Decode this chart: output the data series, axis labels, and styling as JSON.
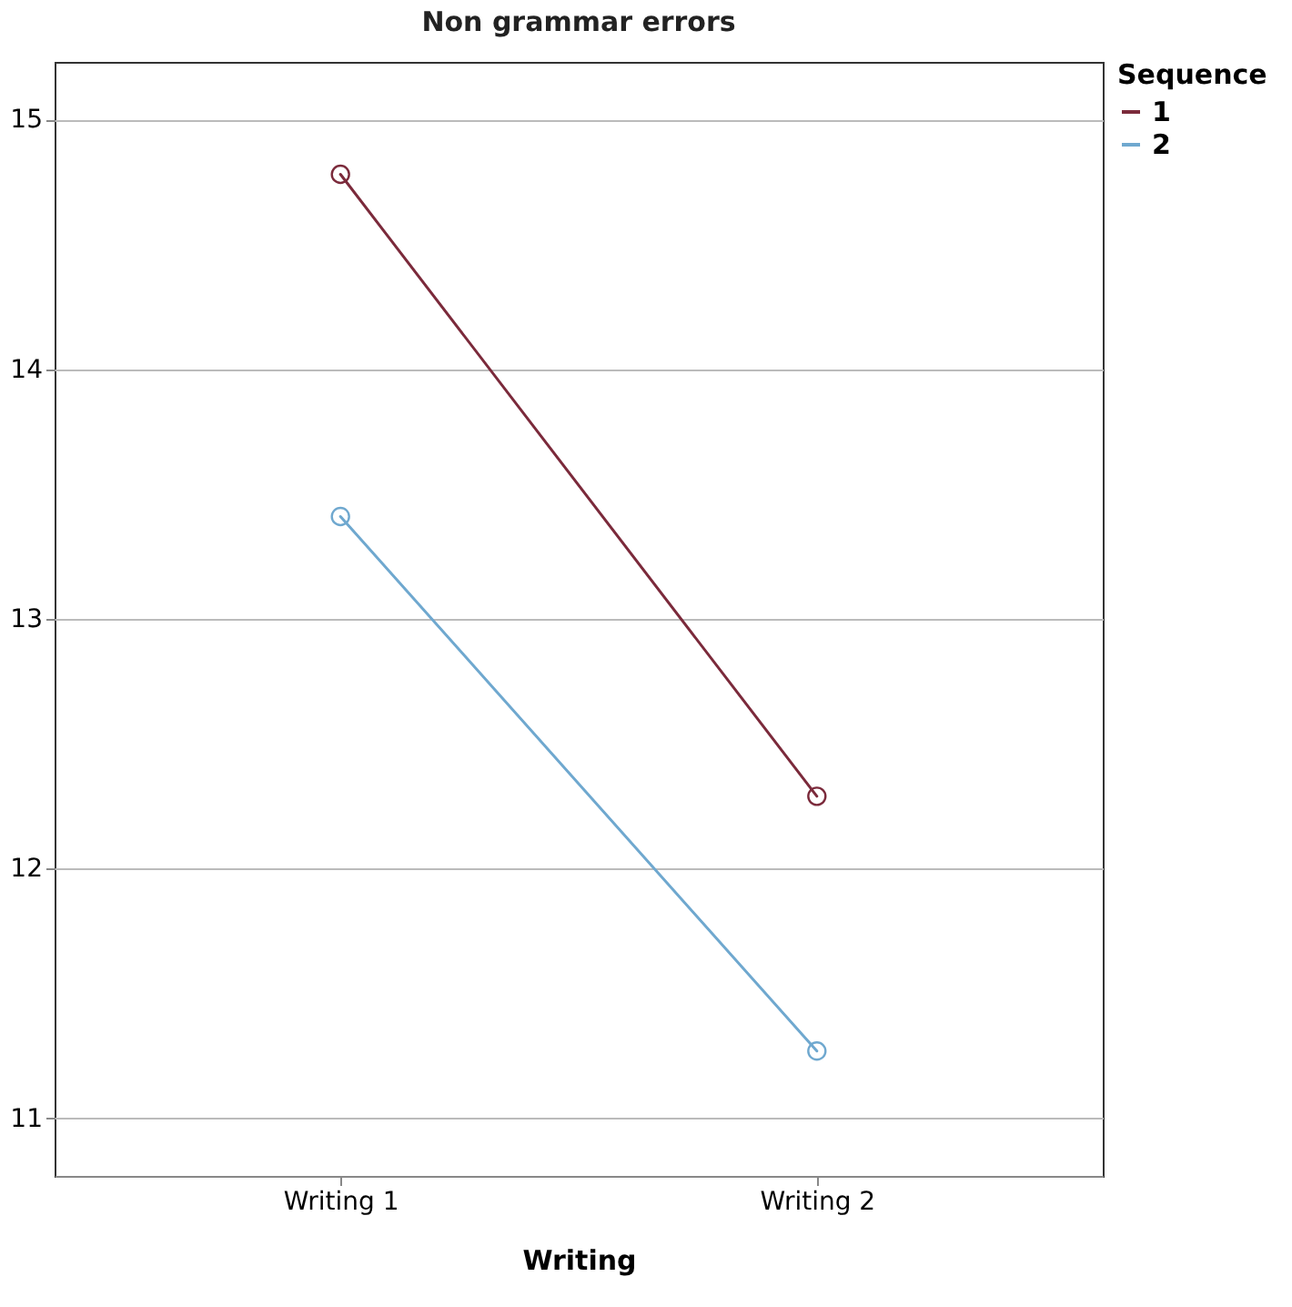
{
  "chart_data": {
    "type": "line",
    "title": "Non grammar errors",
    "xlabel": "Writing",
    "categories": [
      "Writing 1",
      "Writing 2"
    ],
    "series": [
      {
        "name": "1",
        "color": "#7b2a3b",
        "values": [
          14.78,
          12.29
        ]
      },
      {
        "name": "2",
        "color": "#6fa8cf",
        "values": [
          13.41,
          11.27
        ]
      }
    ],
    "ylim": [
      10.77,
      15.23
    ],
    "yticks": [
      11,
      12,
      13,
      14,
      15
    ],
    "grid": "y",
    "legend": "top right",
    "legend_title": "Sequence",
    "marker": "circle",
    "line_style": "solid"
  }
}
